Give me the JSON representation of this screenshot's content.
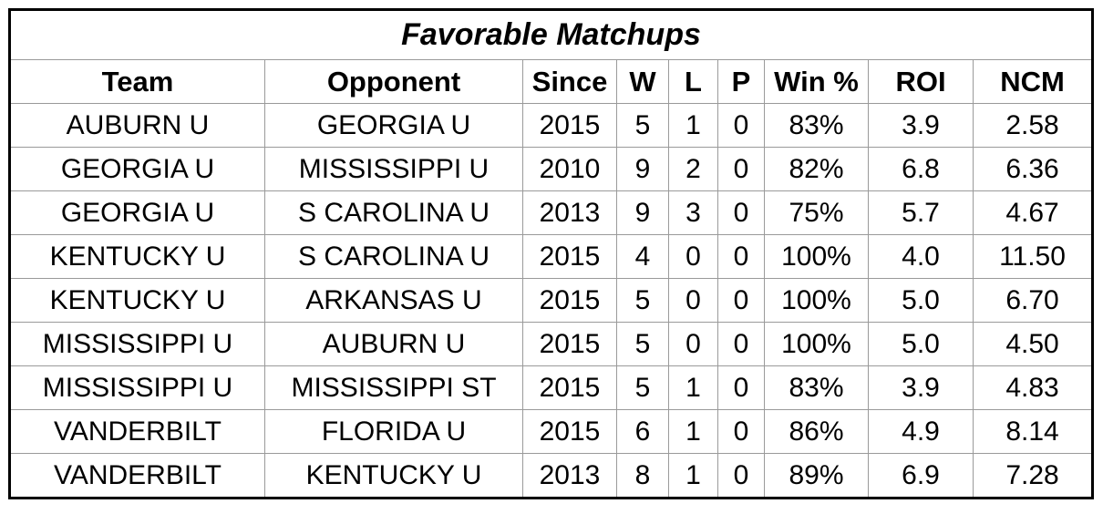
{
  "header": {
    "title": "Favorable Matchups"
  },
  "table": {
    "columns": [
      "Team",
      "Opponent",
      "Since",
      "W",
      "L",
      "P",
      "Win %",
      "ROI",
      "NCM"
    ],
    "rows": [
      [
        "AUBURN U",
        "GEORGIA U",
        "2015",
        "5",
        "1",
        "0",
        "83%",
        "3.9",
        "2.58"
      ],
      [
        "GEORGIA U",
        "MISSISSIPPI U",
        "2010",
        "9",
        "2",
        "0",
        "82%",
        "6.8",
        "6.36"
      ],
      [
        "GEORGIA U",
        "S CAROLINA U",
        "2013",
        "9",
        "3",
        "0",
        "75%",
        "5.7",
        "4.67"
      ],
      [
        "KENTUCKY U",
        "S CAROLINA U",
        "2015",
        "4",
        "0",
        "0",
        "100%",
        "4.0",
        "11.50"
      ],
      [
        "KENTUCKY U",
        "ARKANSAS U",
        "2015",
        "5",
        "0",
        "0",
        "100%",
        "5.0",
        "6.70"
      ],
      [
        "MISSISSIPPI U",
        "AUBURN U",
        "2015",
        "5",
        "0",
        "0",
        "100%",
        "5.0",
        "4.50"
      ],
      [
        "MISSISSIPPI U",
        "MISSISSIPPI ST",
        "2015",
        "5",
        "1",
        "0",
        "83%",
        "3.9",
        "4.83"
      ],
      [
        "VANDERBILT",
        "FLORIDA U",
        "2015",
        "6",
        "1",
        "0",
        "86%",
        "4.9",
        "8.14"
      ],
      [
        "VANDERBILT",
        "KENTUCKY U",
        "2013",
        "8",
        "1",
        "0",
        "89%",
        "6.9",
        "7.28"
      ]
    ]
  }
}
